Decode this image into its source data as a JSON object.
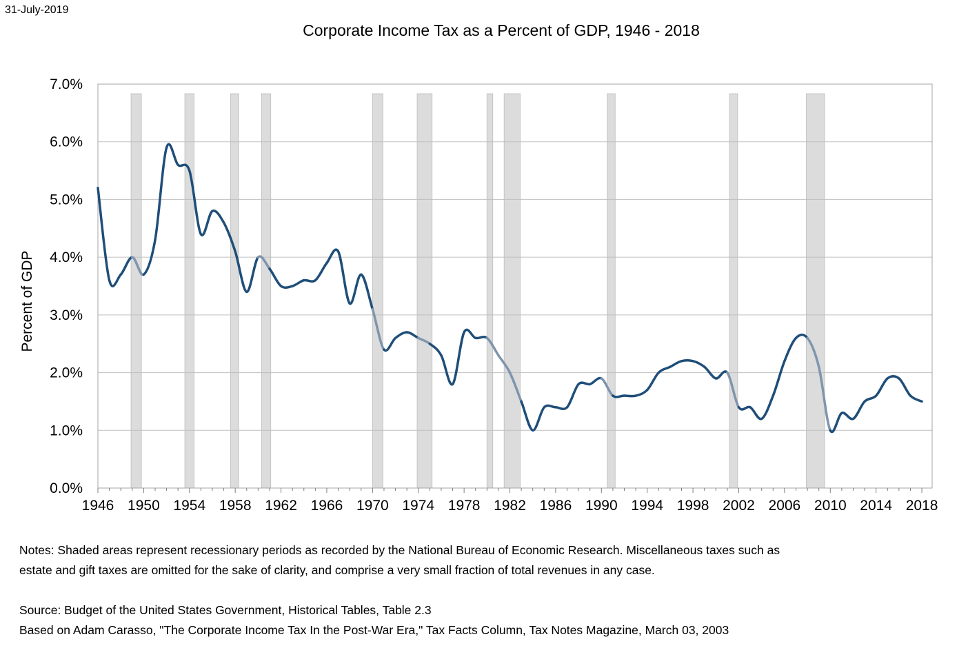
{
  "date_stamp": "31-July-2019",
  "chart_data": {
    "type": "line",
    "title": "Corporate Income Tax as a Percent of GDP, 1946 - 2018",
    "xlabel": "",
    "ylabel": "Percent of GDP",
    "xlim": [
      1946,
      2018.9
    ],
    "ylim": [
      0,
      7
    ],
    "x_ticks": [
      "1946",
      "1950",
      "1954",
      "1958",
      "1962",
      "1966",
      "1970",
      "1974",
      "1978",
      "1982",
      "1986",
      "1990",
      "1994",
      "1998",
      "2002",
      "2006",
      "2010",
      "2014",
      "2018"
    ],
    "y_ticks": [
      "0.0%",
      "1.0%",
      "2.0%",
      "3.0%",
      "4.0%",
      "5.0%",
      "6.0%",
      "7.0%"
    ],
    "grid": "horizontal",
    "line_color": "#1f4e79",
    "recession_line_color": "#7f95ad",
    "recession_fill": "#dcdcdc",
    "x": [
      1946,
      1947,
      1948,
      1949,
      1950,
      1951,
      1952,
      1953,
      1954,
      1955,
      1956,
      1957,
      1958,
      1959,
      1960,
      1961,
      1962,
      1963,
      1964,
      1965,
      1966,
      1967,
      1968,
      1969,
      1970,
      1971,
      1972,
      1973,
      1974,
      1975,
      1976,
      1977,
      1978,
      1979,
      1980,
      1981,
      1982,
      1983,
      1984,
      1985,
      1986,
      1987,
      1988,
      1989,
      1990,
      1991,
      1992,
      1993,
      1994,
      1995,
      1996,
      1997,
      1998,
      1999,
      2000,
      2001,
      2002,
      2003,
      2004,
      2005,
      2006,
      2007,
      2008,
      2009,
      2010,
      2011,
      2012,
      2013,
      2014,
      2015,
      2016,
      2017,
      2018
    ],
    "values": [
      5.2,
      3.6,
      3.7,
      4.0,
      3.7,
      4.3,
      5.9,
      5.6,
      5.5,
      4.4,
      4.8,
      4.6,
      4.1,
      3.4,
      4.0,
      3.8,
      3.5,
      3.5,
      3.6,
      3.6,
      3.9,
      4.1,
      3.2,
      3.7,
      3.1,
      2.4,
      2.6,
      2.7,
      2.6,
      2.5,
      2.3,
      1.8,
      2.7,
      2.6,
      2.6,
      2.3,
      2.0,
      1.5,
      1.0,
      1.4,
      1.4,
      1.4,
      1.8,
      1.8,
      1.9,
      1.6,
      1.6,
      1.6,
      1.7,
      2.0,
      2.1,
      2.2,
      2.2,
      2.1,
      1.9,
      2.0,
      1.4,
      1.4,
      1.2,
      1.6,
      2.2,
      2.6,
      2.6,
      2.1,
      1.0,
      1.3,
      1.2,
      1.5,
      1.6,
      1.9,
      1.9,
      1.6,
      1.5
    ],
    "recessions": [
      [
        1948.9,
        1949.8
      ],
      [
        1953.6,
        1954.4
      ],
      [
        1957.6,
        1958.3
      ],
      [
        1960.3,
        1961.1
      ],
      [
        1970.0,
        1970.9
      ],
      [
        1973.9,
        1975.2
      ],
      [
        1980.0,
        1980.5
      ],
      [
        1981.5,
        1982.9
      ],
      [
        1990.5,
        1991.2
      ],
      [
        2001.2,
        2001.9
      ],
      [
        2007.9,
        2009.5
      ]
    ]
  },
  "notes": {
    "line1": "Notes:  Shaded areas represent recessionary periods as recorded by the National Bureau of Economic Research.  Miscellaneous taxes such as",
    "line2": "estate and gift taxes are omitted for the sake of clarity, and comprise a very small fraction of total revenues in any case.",
    "source": "Source:  Budget of the United States Government, Historical Tables, Table 2.3",
    "based_on": "Based on Adam Carasso, \"The Corporate Income Tax In the Post-War Era,\" Tax Facts Column, Tax Notes Magazine, March 03, 2003"
  }
}
